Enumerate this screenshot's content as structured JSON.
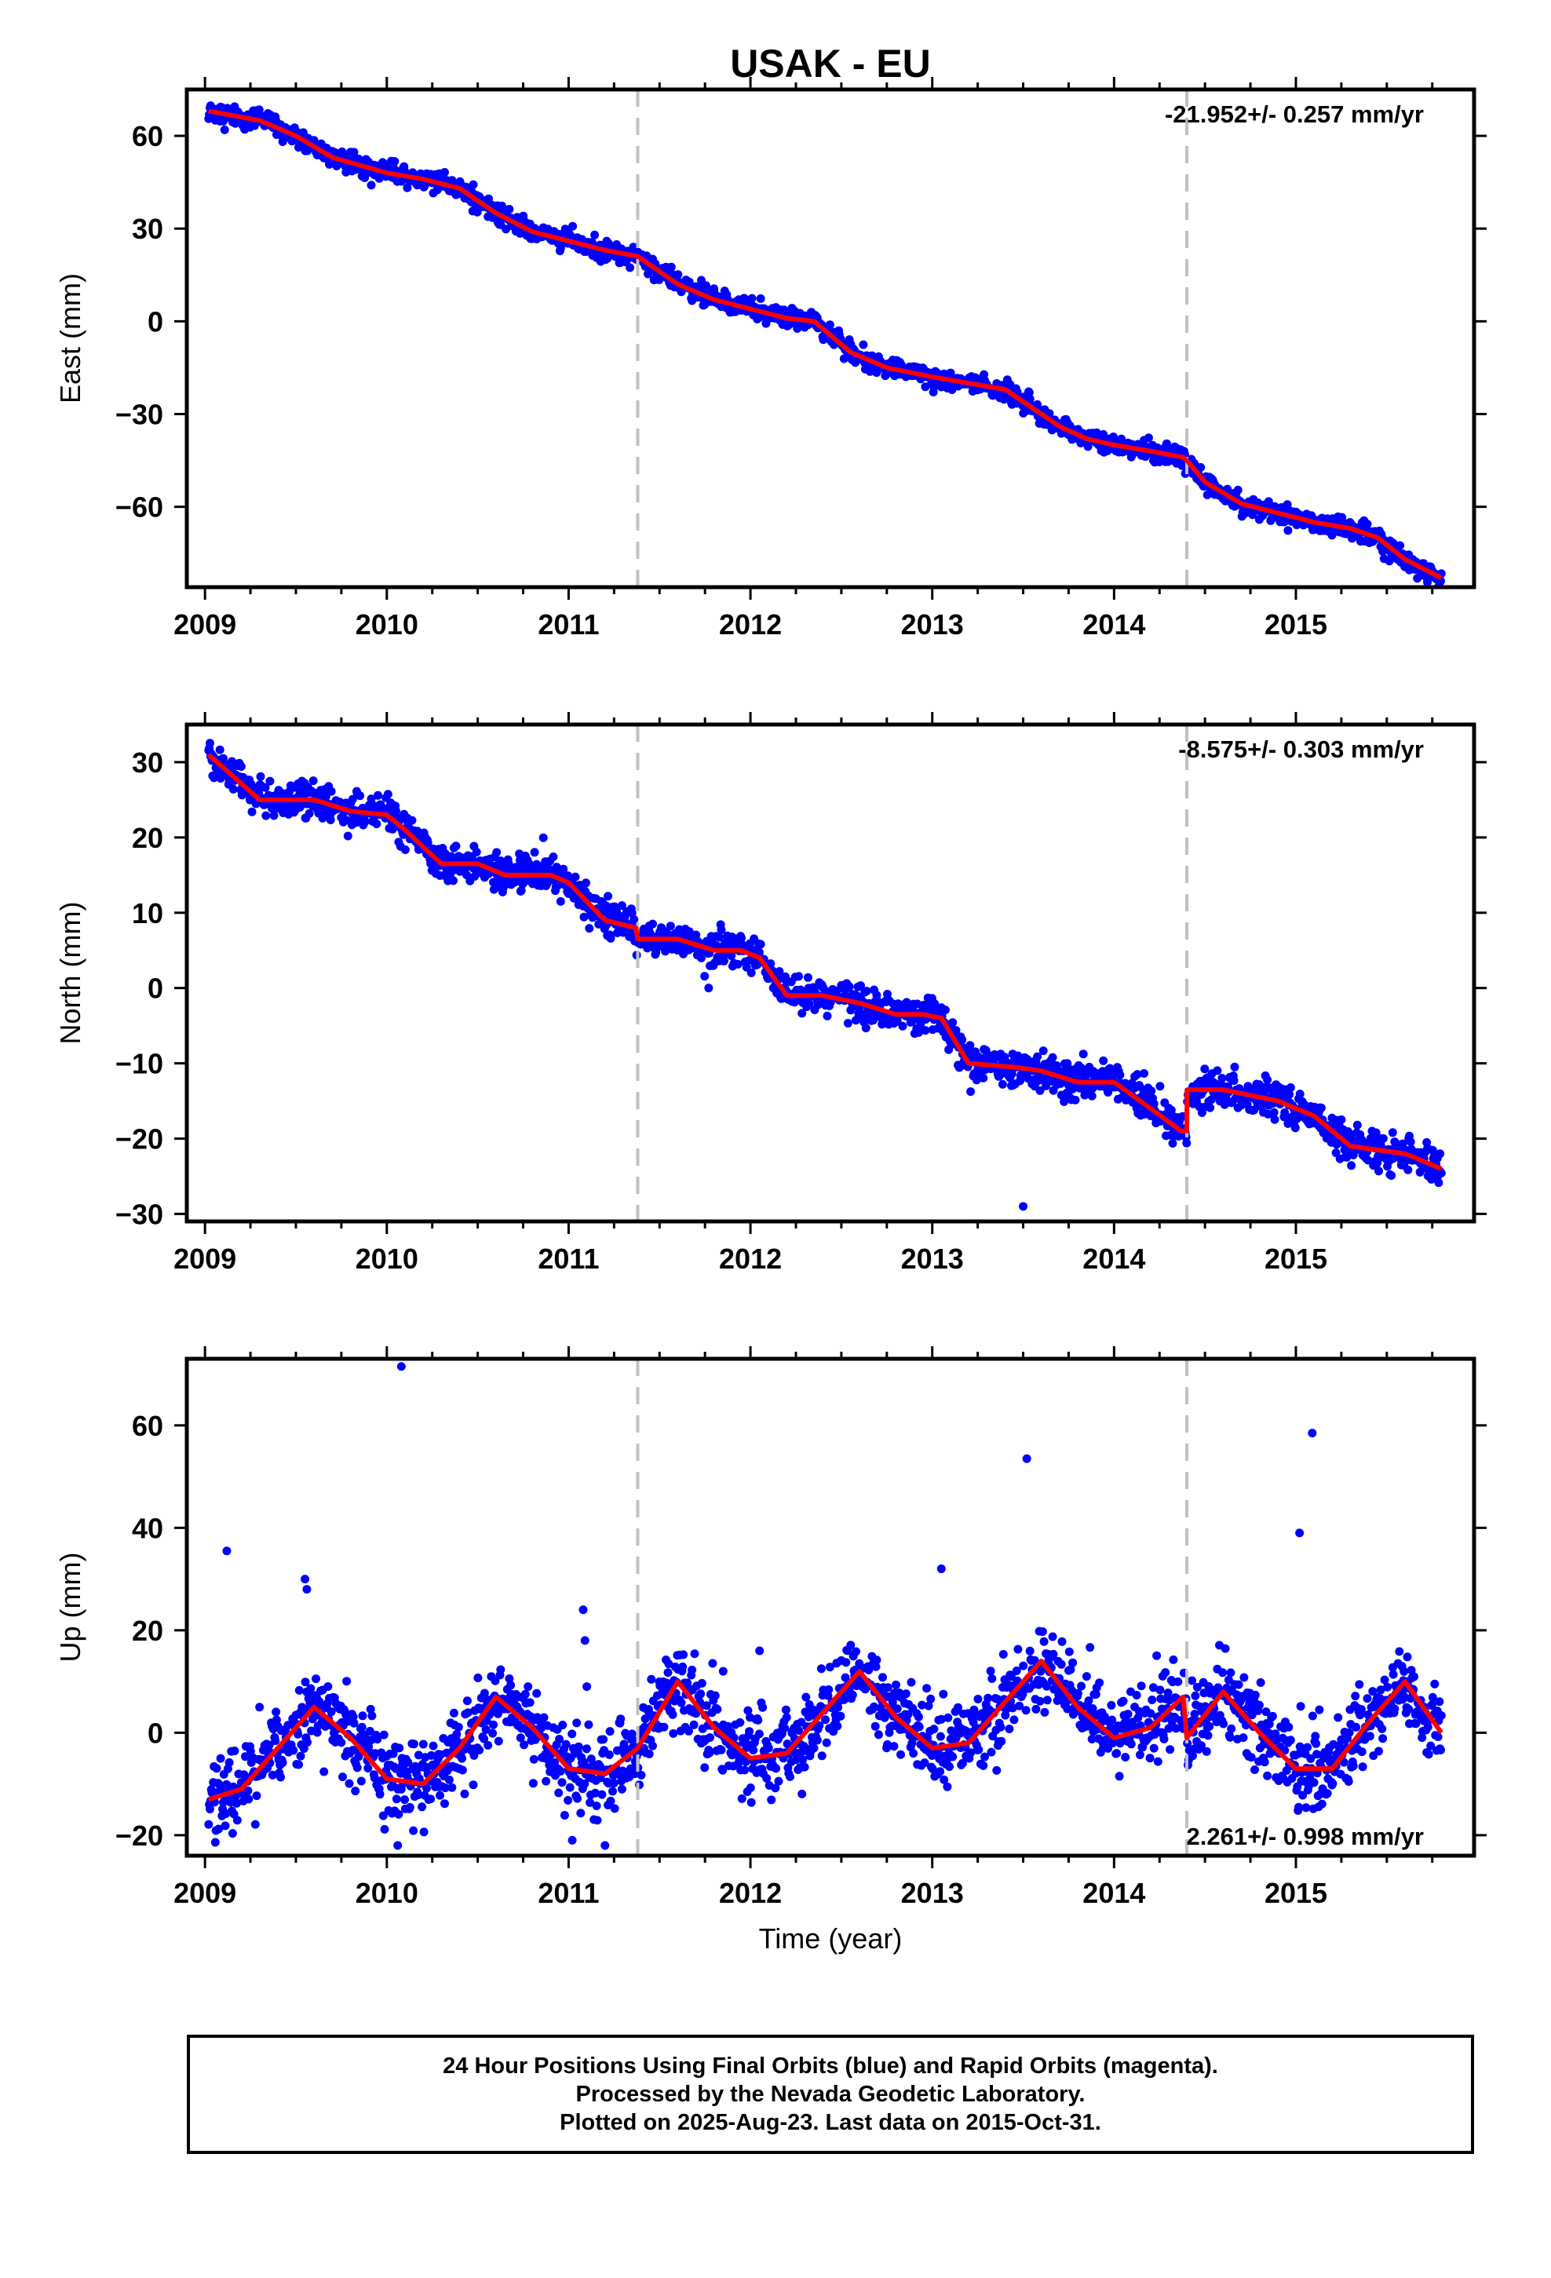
{
  "figure": {
    "title": "USAK - EU",
    "xlabel": "Time (year)",
    "footer": [
      "24 Hour Positions Using Final Orbits (blue) and Rapid Orbits (magenta).",
      "Processed by the Nevada Geodetic Laboratory.",
      "Plotted on 2025-Aug-23. Last data on 2015-Oct-31."
    ],
    "colors": {
      "points": "#0000ff",
      "model": "#ff0000",
      "breaks": "#c0c0c0",
      "axes": "#000000"
    }
  },
  "chart_data": [
    {
      "type": "scatter",
      "component": "east",
      "ylabel": "East (mm)",
      "rate_label": "-21.952+/- 0.257 mm/yr",
      "rate_position": "top-right",
      "xlim": [
        2008.9,
        2015.98
      ],
      "ylim": [
        -86,
        75
      ],
      "xticks": [
        2009,
        2010,
        2011,
        2012,
        2013,
        2014,
        2015
      ],
      "yticks": [
        60,
        30,
        0,
        -30,
        -60
      ],
      "ytick_labels": [
        "60",
        "30",
        "0",
        "−30",
        "−60"
      ],
      "breaks": [
        2011.38,
        2014.4
      ],
      "model_line": {
        "x": [
          2009.02,
          2009.3,
          2009.5,
          2009.7,
          2010.0,
          2010.2,
          2010.4,
          2010.6,
          2010.8,
          2011.0,
          2011.2,
          2011.38,
          2011.6,
          2011.8,
          2012.0,
          2012.2,
          2012.35,
          2012.55,
          2012.75,
          2013.0,
          2013.2,
          2013.4,
          2013.55,
          2013.7,
          2013.85,
          2014.0,
          2014.2,
          2014.38,
          2014.4,
          2014.5,
          2014.7,
          2014.9,
          2015.1,
          2015.3,
          2015.45,
          2015.6,
          2015.8
        ],
        "y": [
          68,
          65,
          60,
          53,
          48,
          46,
          43,
          35,
          29,
          26,
          23,
          21,
          12,
          7,
          4,
          1,
          0,
          -10,
          -15,
          -18,
          -20,
          -22,
          -28,
          -34,
          -38,
          -40,
          -42,
          -44,
          -45,
          -52,
          -59,
          -62,
          -65,
          -67,
          -70,
          -77,
          -83
        ]
      },
      "points": {
        "trend": [
          [
            2009.02,
            68
          ],
          [
            2009.3,
            65
          ],
          [
            2009.5,
            60
          ],
          [
            2009.7,
            53
          ],
          [
            2010.0,
            48
          ],
          [
            2010.2,
            46
          ],
          [
            2010.4,
            43
          ],
          [
            2010.6,
            35
          ],
          [
            2010.8,
            29
          ],
          [
            2011.0,
            26
          ],
          [
            2011.2,
            23
          ],
          [
            2011.38,
            21
          ],
          [
            2011.6,
            12
          ],
          [
            2011.8,
            7
          ],
          [
            2012.0,
            4
          ],
          [
            2012.2,
            1
          ],
          [
            2012.35,
            0
          ],
          [
            2012.55,
            -10
          ],
          [
            2012.75,
            -15
          ],
          [
            2013.0,
            -18
          ],
          [
            2013.2,
            -20
          ],
          [
            2013.4,
            -22
          ],
          [
            2013.55,
            -28
          ],
          [
            2013.7,
            -34
          ],
          [
            2013.85,
            -38
          ],
          [
            2014.0,
            -40
          ],
          [
            2014.2,
            -42
          ],
          [
            2014.38,
            -44
          ],
          [
            2014.4,
            -45
          ],
          [
            2014.5,
            -52
          ],
          [
            2014.7,
            -59
          ],
          [
            2014.9,
            -62
          ],
          [
            2015.1,
            -65
          ],
          [
            2015.3,
            -67
          ],
          [
            2015.45,
            -70
          ],
          [
            2015.6,
            -77
          ],
          [
            2015.8,
            -83
          ]
        ],
        "scatter": 1.6,
        "outliers": []
      }
    },
    {
      "type": "scatter",
      "component": "north",
      "ylabel": "North (mm)",
      "rate_label": "-8.575+/- 0.303 mm/yr",
      "rate_position": "top-right",
      "xlim": [
        2008.9,
        2015.98
      ],
      "ylim": [
        -31,
        35
      ],
      "xticks": [
        2009,
        2010,
        2011,
        2012,
        2013,
        2014,
        2015
      ],
      "yticks": [
        30,
        20,
        10,
        0,
        -10,
        -20,
        -30
      ],
      "ytick_labels": [
        "30",
        "20",
        "10",
        "0",
        "−10",
        "−20",
        "−30"
      ],
      "breaks": [
        2011.38,
        2014.4
      ],
      "model_line": {
        "x": [
          2009.02,
          2009.3,
          2009.6,
          2009.8,
          2010.0,
          2010.1,
          2010.3,
          2010.5,
          2010.65,
          2010.9,
          2011.0,
          2011.2,
          2011.37,
          2011.38,
          2011.6,
          2011.8,
          2011.95,
          2012.05,
          2012.2,
          2012.4,
          2012.6,
          2012.8,
          2012.95,
          2013.05,
          2013.2,
          2013.45,
          2013.6,
          2013.8,
          2014.0,
          2014.2,
          2014.37,
          2014.4,
          2014.401,
          2014.6,
          2014.9,
          2015.1,
          2015.3,
          2015.6,
          2015.8
        ],
        "y": [
          31,
          25,
          25,
          23.5,
          23,
          21,
          16.5,
          16.5,
          15,
          15,
          14,
          9,
          8,
          6.5,
          6.5,
          5,
          5,
          4,
          -1,
          -1,
          -2,
          -3.5,
          -3.5,
          -4,
          -10,
          -10.5,
          -11,
          -12.5,
          -12.5,
          -16,
          -19,
          -19,
          -13.5,
          -13.5,
          -15,
          -17,
          -21,
          -22,
          -24
        ]
      },
      "points": {
        "trend": [
          [
            2009.02,
            31
          ],
          [
            2009.3,
            25
          ],
          [
            2009.6,
            25
          ],
          [
            2009.8,
            23.5
          ],
          [
            2010.0,
            23
          ],
          [
            2010.1,
            21
          ],
          [
            2010.3,
            16.5
          ],
          [
            2010.5,
            16.5
          ],
          [
            2010.65,
            15
          ],
          [
            2010.9,
            15
          ],
          [
            2011.0,
            14
          ],
          [
            2011.2,
            9
          ],
          [
            2011.37,
            8
          ],
          [
            2011.38,
            6.5
          ],
          [
            2011.6,
            6.5
          ],
          [
            2011.8,
            5
          ],
          [
            2011.95,
            5
          ],
          [
            2012.05,
            4
          ],
          [
            2012.2,
            -1
          ],
          [
            2012.4,
            -1
          ],
          [
            2012.6,
            -2
          ],
          [
            2012.8,
            -3.5
          ],
          [
            2012.95,
            -3.5
          ],
          [
            2013.05,
            -4
          ],
          [
            2013.2,
            -10
          ],
          [
            2013.45,
            -10.5
          ],
          [
            2013.6,
            -11
          ],
          [
            2013.8,
            -12.5
          ],
          [
            2014.0,
            -12.5
          ],
          [
            2014.2,
            -16
          ],
          [
            2014.37,
            -19
          ],
          [
            2014.4,
            -19
          ],
          [
            2014.401,
            -13.5
          ],
          [
            2014.6,
            -13.5
          ],
          [
            2014.9,
            -15
          ],
          [
            2015.1,
            -17
          ],
          [
            2015.3,
            -21
          ],
          [
            2015.6,
            -22
          ],
          [
            2015.8,
            -24
          ]
        ],
        "scatter": 1.2,
        "outliers": [
          [
            2013.5,
            -29
          ],
          [
            2011.77,
            0
          ]
        ]
      }
    },
    {
      "type": "scatter",
      "component": "up",
      "ylabel": "Up (mm)",
      "rate_label": "2.261+/- 0.998 mm/yr",
      "rate_position": "bottom-right",
      "xlim": [
        2008.9,
        2015.98
      ],
      "ylim": [
        -24,
        73
      ],
      "xticks": [
        2009,
        2010,
        2011,
        2012,
        2013,
        2014,
        2015
      ],
      "yticks": [
        60,
        40,
        20,
        0,
        -20
      ],
      "ytick_labels": [
        "60",
        "40",
        "20",
        "0",
        "−20"
      ],
      "breaks": [
        2011.38,
        2014.4
      ],
      "model_line": {
        "x": [
          2009.02,
          2009.2,
          2009.4,
          2009.6,
          2009.8,
          2010.0,
          2010.2,
          2010.4,
          2010.6,
          2010.8,
          2011.0,
          2011.2,
          2011.38,
          2011.6,
          2011.8,
          2012.0,
          2012.2,
          2012.4,
          2012.6,
          2012.8,
          2013.0,
          2013.2,
          2013.4,
          2013.6,
          2013.8,
          2014.0,
          2014.2,
          2014.38,
          2014.4,
          2014.6,
          2014.8,
          2015.0,
          2015.2,
          2015.4,
          2015.6,
          2015.8
        ],
        "y": [
          -13,
          -11,
          -3,
          5,
          -1,
          -9,
          -10,
          -3,
          7,
          1,
          -7,
          -8,
          -3,
          10,
          1,
          -5,
          -4,
          4,
          12,
          3,
          -3,
          -2,
          6,
          14,
          5,
          -1,
          1,
          7,
          -1,
          8,
          0,
          -7,
          -7,
          2,
          10,
          0
        ]
      },
      "points": {
        "trend": [
          [
            2009.02,
            -13
          ],
          [
            2009.2,
            -11
          ],
          [
            2009.4,
            -3
          ],
          [
            2009.6,
            5
          ],
          [
            2009.8,
            -1
          ],
          [
            2010.0,
            -9
          ],
          [
            2010.2,
            -10
          ],
          [
            2010.4,
            -3
          ],
          [
            2010.6,
            7
          ],
          [
            2010.8,
            1
          ],
          [
            2011.0,
            -7
          ],
          [
            2011.2,
            -8
          ],
          [
            2011.38,
            -3
          ],
          [
            2011.6,
            10
          ],
          [
            2011.8,
            1
          ],
          [
            2012.0,
            -5
          ],
          [
            2012.2,
            -4
          ],
          [
            2012.4,
            4
          ],
          [
            2012.6,
            12
          ],
          [
            2012.8,
            3
          ],
          [
            2013.0,
            -3
          ],
          [
            2013.2,
            -2
          ],
          [
            2013.4,
            6
          ],
          [
            2013.6,
            14
          ],
          [
            2013.8,
            5
          ],
          [
            2014.0,
            -1
          ],
          [
            2014.2,
            1
          ],
          [
            2014.38,
            7
          ],
          [
            2014.4,
            -1
          ],
          [
            2014.6,
            8
          ],
          [
            2014.8,
            0
          ],
          [
            2015.0,
            -7
          ],
          [
            2015.2,
            -7
          ],
          [
            2015.4,
            2
          ],
          [
            2015.6,
            10
          ],
          [
            2015.8,
            0
          ]
        ],
        "scatter": 4.0,
        "outliers": [
          [
            2010.08,
            71.5
          ],
          [
            2009.12,
            35.5
          ],
          [
            2009.55,
            30
          ],
          [
            2009.56,
            28
          ],
          [
            2011.08,
            24
          ],
          [
            2011.09,
            18
          ],
          [
            2011.1,
            9
          ],
          [
            2013.05,
            32
          ],
          [
            2013.52,
            53.5
          ],
          [
            2015.02,
            39
          ],
          [
            2015.09,
            58.5
          ],
          [
            2011.85,
            12
          ],
          [
            2012.05,
            16
          ],
          [
            2009.3,
            5
          ],
          [
            2010.06,
            -22
          ],
          [
            2011.02,
            -21
          ],
          [
            2011.2,
            -22
          ]
        ]
      }
    }
  ]
}
